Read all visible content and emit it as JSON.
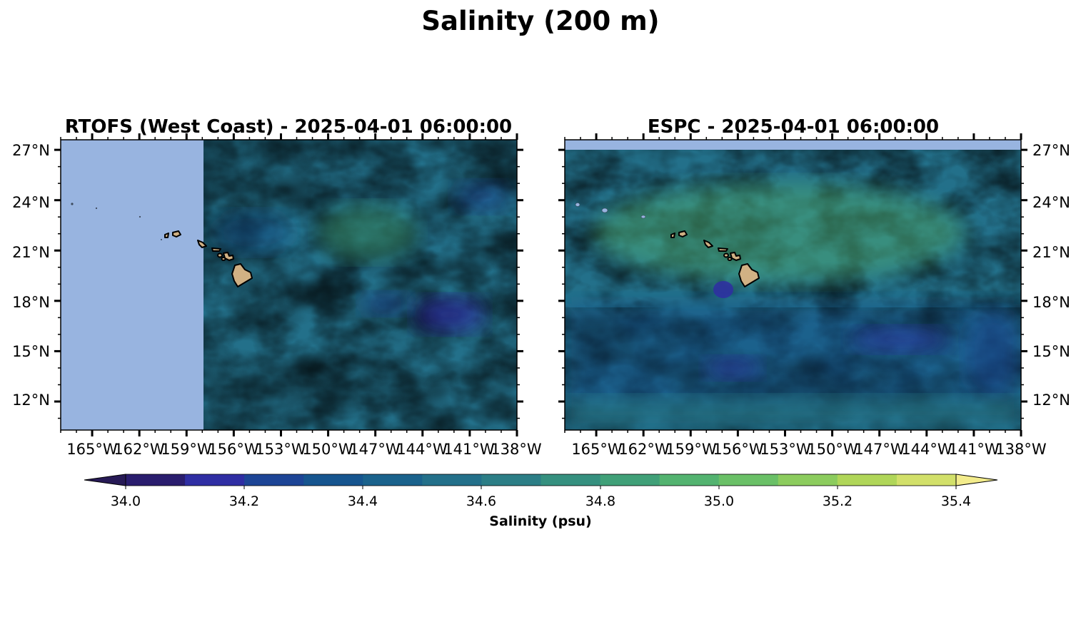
{
  "figure": {
    "title": "Salinity (200 m)"
  },
  "panels": [
    {
      "id": "rtofs",
      "title": "RTOFS (West Coast) - 2025-04-01 06:00:00",
      "lat_labels_side": "left",
      "data_lon_start": "157.7°W"
    },
    {
      "id": "espc",
      "title": "ESPC - 2025-04-01 06:00:00",
      "lat_labels_side": "right",
      "data_lat_end": "27.6°N"
    }
  ],
  "map_extent": {
    "lon_min": -167,
    "lon_max": -138,
    "lat_min": 10.3,
    "lat_max": 27.6
  },
  "axes": {
    "lon_ticks": [
      -165,
      -162,
      -159,
      -156,
      -153,
      -150,
      -147,
      -144,
      -141,
      -138
    ],
    "lon_labels": [
      "165°W",
      "162°W",
      "159°W",
      "156°W",
      "153°W",
      "150°W",
      "147°W",
      "144°W",
      "141°W",
      "138°W"
    ],
    "lat_ticks": [
      12,
      15,
      18,
      21,
      24,
      27
    ],
    "lat_labels": [
      "12°N",
      "15°N",
      "18°N",
      "21°N",
      "24°N",
      "27°N"
    ]
  },
  "colorbar": {
    "label": "Salinity (psu)",
    "ticks": [
      "34.0",
      "34.2",
      "34.4",
      "34.6",
      "34.8",
      "35.0",
      "35.2",
      "35.4"
    ],
    "min": 34.0,
    "max": 35.4,
    "step": 0.1,
    "extend": "both",
    "colors": [
      "#2a1d6e",
      "#2f2ea3",
      "#1d4596",
      "#16558f",
      "#1a628c",
      "#23708a",
      "#2c7e86",
      "#35907f",
      "#40a078",
      "#53b370",
      "#6ac067",
      "#8ccc5e",
      "#b0d659",
      "#d2e06a"
    ],
    "under_color": "#271a56",
    "over_color": "#f3ec8c"
  },
  "colors": {
    "no_data": "#98b4e0",
    "land": "#d1b184",
    "coastline": "#000000"
  }
}
